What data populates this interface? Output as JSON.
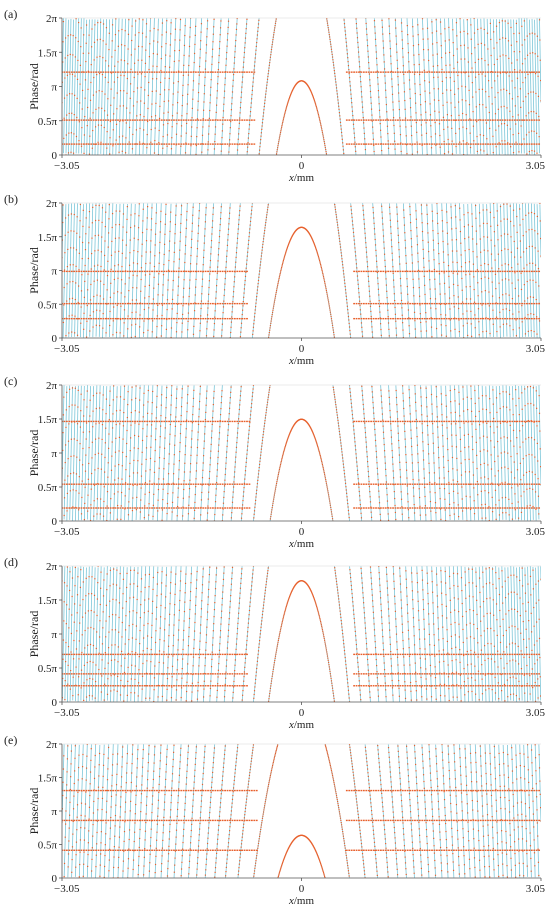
{
  "colors": {
    "line": "#7cc6d8",
    "points": "#e8602c",
    "axis": "#555555",
    "text": "#222222"
  },
  "chart_data": [
    {
      "type": "scatter",
      "panel_label": "(a)",
      "xlabel_var": "x",
      "xlabel_unit": "/mm",
      "ylabel": "Phase/rad",
      "xlim": [
        -3.05,
        3.05
      ],
      "ylim": [
        0,
        6.2832
      ],
      "x_ticks": [
        {
          "v": -3.05,
          "label": "−3.05"
        },
        {
          "v": 0,
          "label": "0"
        },
        {
          "v": 3.05,
          "label": "3.05"
        }
      ],
      "y_ticks": [
        {
          "v": 0,
          "label": "0"
        },
        {
          "v": 1.5708,
          "label": "0.5π"
        },
        {
          "v": 3.1416,
          "label": "π"
        },
        {
          "v": 4.7124,
          "label": "1.5π"
        },
        {
          "v": 6.2832,
          "label": "2π"
        }
      ],
      "center_peak": 3.4,
      "zero_radius": 0.32,
      "levels": [
        0.5,
        1.6,
        3.8
      ]
    },
    {
      "type": "scatter",
      "panel_label": "(b)",
      "xlabel_var": "x",
      "xlabel_unit": "/mm",
      "ylabel": "Phase/rad",
      "xlim": [
        -3.05,
        3.05
      ],
      "ylim": [
        0,
        6.2832
      ],
      "x_ticks": [
        {
          "v": -3.05,
          "label": "−3.05"
        },
        {
          "v": 0,
          "label": "0"
        },
        {
          "v": 3.05,
          "label": "3.05"
        }
      ],
      "y_ticks": [
        {
          "v": 0,
          "label": "0"
        },
        {
          "v": 1.5708,
          "label": "0.5π"
        },
        {
          "v": 3.1416,
          "label": "π"
        },
        {
          "v": 4.7124,
          "label": "1.5π"
        },
        {
          "v": 6.2832,
          "label": "2π"
        }
      ],
      "center_peak": 5.15,
      "zero_radius": 0.42,
      "levels": [
        0.9,
        1.6,
        3.1
      ]
    },
    {
      "type": "scatter",
      "panel_label": "(c)",
      "xlabel_var": "x",
      "xlabel_unit": "/mm",
      "ylabel": "Phase/rad",
      "xlim": [
        -3.05,
        3.05
      ],
      "ylim": [
        0,
        6.2832
      ],
      "x_ticks": [
        {
          "v": -3.05,
          "label": "−3.05"
        },
        {
          "v": 0,
          "label": "0"
        },
        {
          "v": 3.05,
          "label": "3.05"
        }
      ],
      "y_ticks": [
        {
          "v": 0,
          "label": "0"
        },
        {
          "v": 1.5708,
          "label": "0.5π"
        },
        {
          "v": 3.1416,
          "label": "π"
        },
        {
          "v": 4.7124,
          "label": "1.5π"
        },
        {
          "v": 6.2832,
          "label": "2π"
        }
      ],
      "center_peak": 4.7,
      "zero_radius": 0.4,
      "levels": [
        0.6,
        1.7,
        4.6
      ]
    },
    {
      "type": "scatter",
      "panel_label": "(d)",
      "xlabel_var": "x",
      "xlabel_unit": "/mm",
      "ylabel": "Phase/rad",
      "xlim": [
        -3.05,
        3.05
      ],
      "ylim": [
        0,
        6.2832
      ],
      "x_ticks": [
        {
          "v": -3.05,
          "label": "−3.05"
        },
        {
          "v": 0,
          "label": "0"
        },
        {
          "v": 3.05,
          "label": "3.05"
        }
      ],
      "y_ticks": [
        {
          "v": 0,
          "label": "0"
        },
        {
          "v": 1.5708,
          "label": "0.5π"
        },
        {
          "v": 3.1416,
          "label": "π"
        },
        {
          "v": 4.7124,
          "label": "1.5π"
        },
        {
          "v": 6.2832,
          "label": "2π"
        }
      ],
      "center_peak": 5.6,
      "zero_radius": 0.42,
      "levels": [
        0.75,
        1.3,
        2.2
      ]
    },
    {
      "type": "scatter",
      "panel_label": "(e)",
      "xlabel_var": "x",
      "xlabel_unit": "/mm",
      "ylabel": "Phase/rad",
      "xlim": [
        -3.05,
        3.05
      ],
      "ylim": [
        0,
        6.2832
      ],
      "x_ticks": [
        {
          "v": -3.05,
          "label": "−3.05"
        },
        {
          "v": 0,
          "label": "0"
        },
        {
          "v": 3.05,
          "label": "3.05"
        }
      ],
      "y_ticks": [
        {
          "v": 0,
          "label": "0"
        },
        {
          "v": 1.5708,
          "label": "0.5π"
        },
        {
          "v": 3.1416,
          "label": "π"
        },
        {
          "v": 4.7124,
          "label": "1.5π"
        },
        {
          "v": 6.2832,
          "label": "2π"
        }
      ],
      "center_peak": 2.0,
      "zero_radius": 0.3,
      "levels": [
        1.3,
        2.7,
        4.1
      ]
    }
  ]
}
